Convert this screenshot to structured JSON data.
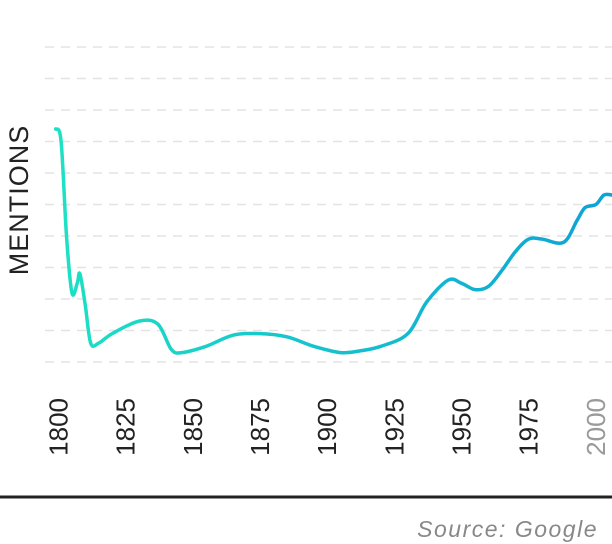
{
  "chart_data": {
    "type": "line",
    "title": "",
    "xlabel": "",
    "ylabel": "MENTIONS",
    "xlim": [
      1795,
      2006
    ],
    "ylim": [
      0,
      10
    ],
    "x_ticks": [
      "1800",
      "1825",
      "1850",
      "1875",
      "1900",
      "1925",
      "1950",
      "1975",
      "2000"
    ],
    "grid": true,
    "line_gradient": [
      "#1de1c4",
      "#0ea2d6"
    ],
    "series": [
      {
        "x": [
          1799,
          1801,
          1803,
          1805,
          1807,
          1808,
          1810,
          1812,
          1815,
          1820,
          1830,
          1837,
          1842,
          1846,
          1855,
          1865,
          1875,
          1885,
          1895,
          1905,
          1912,
          1920,
          1930,
          1937,
          1945,
          1950,
          1955,
          1960,
          1965,
          1970,
          1975,
          1980,
          1988,
          1993,
          1996,
          2000,
          2003,
          2006
        ],
        "values": [
          7.4,
          7.0,
          4.0,
          2.2,
          2.5,
          2.8,
          1.8,
          0.6,
          0.6,
          0.9,
          1.3,
          1.2,
          0.4,
          0.3,
          0.5,
          0.85,
          0.9,
          0.8,
          0.5,
          0.3,
          0.35,
          0.5,
          0.9,
          1.9,
          2.6,
          2.5,
          2.3,
          2.4,
          2.9,
          3.5,
          3.9,
          3.9,
          3.8,
          4.5,
          4.9,
          5.0,
          5.3,
          5.3
        ]
      }
    ]
  },
  "source_text": "Source: Google"
}
